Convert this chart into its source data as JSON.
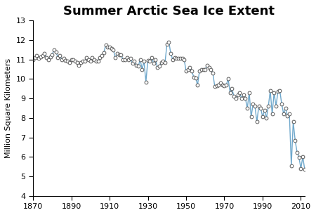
{
  "title": "Summer Arctic Sea Ice Extent",
  "ylabel": "Million Square Kilometers",
  "xlim": [
    1870,
    2012
  ],
  "ylim": [
    4,
    13
  ],
  "xticks": [
    1870,
    1890,
    1910,
    1930,
    1950,
    1970,
    1990,
    2010
  ],
  "yticks": [
    4,
    5,
    6,
    7,
    8,
    9,
    10,
    11,
    12,
    13
  ],
  "line_color": "#6fa8cc",
  "marker_facecolor": "white",
  "marker_edgecolor": "#444444",
  "title_fontsize": 13,
  "years": [
    1870,
    1871,
    1872,
    1873,
    1874,
    1875,
    1876,
    1877,
    1878,
    1879,
    1880,
    1881,
    1882,
    1883,
    1884,
    1885,
    1886,
    1887,
    1888,
    1889,
    1890,
    1891,
    1892,
    1893,
    1894,
    1895,
    1896,
    1897,
    1898,
    1899,
    1900,
    1901,
    1902,
    1903,
    1904,
    1905,
    1906,
    1907,
    1908,
    1909,
    1910,
    1911,
    1912,
    1913,
    1914,
    1915,
    1916,
    1917,
    1918,
    1919,
    1920,
    1921,
    1922,
    1923,
    1924,
    1925,
    1926,
    1927,
    1928,
    1929,
    1930,
    1931,
    1932,
    1933,
    1934,
    1935,
    1936,
    1937,
    1938,
    1939,
    1940,
    1941,
    1942,
    1943,
    1944,
    1945,
    1946,
    1947,
    1948,
    1949,
    1950,
    1951,
    1952,
    1953,
    1954,
    1955,
    1956,
    1957,
    1958,
    1959,
    1960,
    1961,
    1962,
    1963,
    1964,
    1965,
    1966,
    1967,
    1968,
    1969,
    1970,
    1971,
    1972,
    1973,
    1974,
    1975,
    1976,
    1977,
    1978,
    1979,
    1980,
    1981,
    1982,
    1983,
    1984,
    1985,
    1986,
    1987,
    1988,
    1989,
    1990,
    1991,
    1992,
    1993,
    1994,
    1995,
    1996,
    1997,
    1998,
    1999,
    2000,
    2001,
    2002,
    2003,
    2004,
    2005,
    2006,
    2007,
    2008,
    2009,
    2010,
    2011,
    2012
  ],
  "values": [
    11.0,
    11.1,
    11.2,
    11.05,
    11.15,
    11.2,
    11.3,
    11.1,
    11.0,
    11.15,
    11.25,
    11.5,
    11.4,
    11.1,
    11.2,
    11.0,
    11.05,
    10.95,
    10.9,
    10.85,
    11.0,
    11.0,
    10.9,
    10.85,
    10.7,
    10.85,
    10.9,
    10.9,
    11.1,
    11.0,
    10.9,
    11.1,
    11.0,
    10.9,
    10.9,
    11.1,
    11.2,
    11.35,
    11.75,
    11.65,
    11.65,
    11.55,
    11.5,
    11.1,
    11.3,
    11.25,
    11.25,
    11.0,
    11.0,
    11.1,
    11.0,
    11.05,
    10.8,
    10.9,
    10.7,
    10.65,
    11.0,
    10.5,
    10.9,
    9.85,
    10.95,
    10.9,
    11.1,
    10.8,
    11.0,
    10.6,
    10.65,
    10.85,
    10.9,
    10.85,
    11.8,
    11.9,
    11.3,
    11.0,
    11.1,
    11.05,
    11.05,
    11.05,
    11.05,
    11.0,
    10.4,
    10.5,
    10.6,
    10.4,
    10.1,
    10.05,
    9.7,
    10.4,
    10.5,
    10.5,
    10.5,
    10.7,
    10.6,
    10.5,
    10.3,
    9.6,
    9.65,
    9.7,
    9.8,
    9.7,
    9.65,
    9.7,
    10.0,
    9.3,
    9.5,
    9.1,
    9.0,
    9.2,
    9.3,
    9.0,
    9.2,
    9.0,
    8.5,
    9.3,
    8.05,
    8.7,
    8.6,
    7.8,
    8.6,
    8.5,
    8.05,
    8.4,
    8.0,
    8.6,
    9.4,
    8.2,
    9.3,
    8.6,
    9.35,
    9.4,
    8.7,
    8.2,
    8.5,
    8.1,
    8.2,
    5.55,
    7.8,
    6.85,
    6.24,
    5.98,
    5.4,
    6.01,
    5.35
  ]
}
